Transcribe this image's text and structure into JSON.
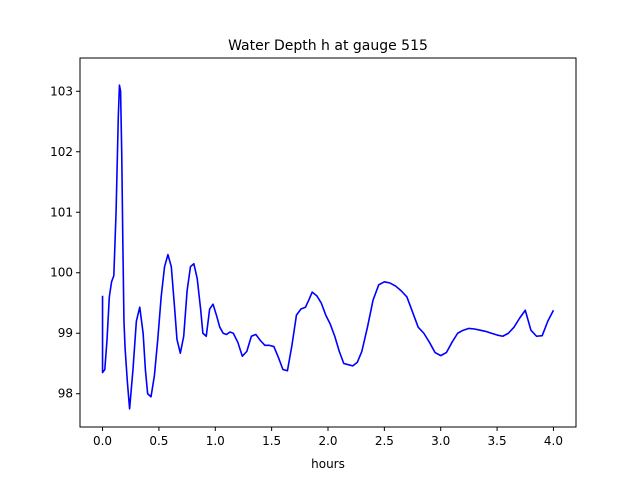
{
  "chart_data": {
    "type": "line",
    "title": "Water Depth h at gauge 515",
    "xlabel": "hours",
    "ylabel": "",
    "xlim": [
      -0.2,
      4.2
    ],
    "ylim": [
      97.45,
      103.55
    ],
    "xticks": [
      0.0,
      0.5,
      1.0,
      1.5,
      2.0,
      2.5,
      3.0,
      3.5,
      4.0
    ],
    "xtick_labels": [
      "0.0",
      "0.5",
      "1.0",
      "1.5",
      "2.0",
      "2.5",
      "3.0",
      "3.5",
      "4.0"
    ],
    "yticks": [
      98,
      99,
      100,
      101,
      102,
      103
    ],
    "ytick_labels": [
      "98",
      "99",
      "100",
      "101",
      "102",
      "103"
    ],
    "grid": false,
    "legend": "none",
    "series": [
      {
        "color": "#0000ff",
        "x": [
          0.0,
          0.0,
          0.02,
          0.04,
          0.06,
          0.08,
          0.1,
          0.12,
          0.14,
          0.15,
          0.16,
          0.17,
          0.18,
          0.19,
          0.2,
          0.22,
          0.24,
          0.27,
          0.3,
          0.33,
          0.36,
          0.38,
          0.4,
          0.43,
          0.46,
          0.49,
          0.52,
          0.55,
          0.58,
          0.61,
          0.64,
          0.66,
          0.69,
          0.72,
          0.75,
          0.78,
          0.81,
          0.84,
          0.87,
          0.89,
          0.92,
          0.95,
          0.98,
          1.01,
          1.04,
          1.07,
          1.1,
          1.13,
          1.16,
          1.2,
          1.24,
          1.28,
          1.32,
          1.36,
          1.4,
          1.44,
          1.48,
          1.52,
          1.56,
          1.6,
          1.64,
          1.68,
          1.72,
          1.76,
          1.8,
          1.83,
          1.86,
          1.9,
          1.94,
          1.98,
          2.02,
          2.06,
          2.1,
          2.14,
          2.18,
          2.22,
          2.26,
          2.3,
          2.35,
          2.4,
          2.45,
          2.5,
          2.55,
          2.6,
          2.65,
          2.7,
          2.75,
          2.8,
          2.85,
          2.9,
          2.95,
          3.0,
          3.05,
          3.1,
          3.15,
          3.2,
          3.25,
          3.3,
          3.35,
          3.4,
          3.45,
          3.5,
          3.55,
          3.6,
          3.65,
          3.7,
          3.75,
          3.8,
          3.85,
          3.9,
          3.95,
          4.0
        ],
        "y": [
          99.62,
          98.35,
          98.4,
          98.9,
          99.6,
          99.85,
          99.95,
          101.0,
          102.6,
          103.1,
          103.0,
          102.0,
          100.5,
          99.2,
          98.75,
          98.2,
          97.75,
          98.4,
          99.2,
          99.43,
          99.0,
          98.4,
          98.0,
          97.95,
          98.3,
          98.9,
          99.6,
          100.1,
          100.3,
          100.1,
          99.4,
          98.9,
          98.67,
          98.95,
          99.7,
          100.1,
          100.15,
          99.9,
          99.4,
          99.0,
          98.95,
          99.4,
          99.48,
          99.3,
          99.1,
          99.0,
          98.98,
          99.02,
          99.0,
          98.85,
          98.62,
          98.7,
          98.95,
          98.98,
          98.88,
          98.8,
          98.8,
          98.78,
          98.6,
          98.4,
          98.38,
          98.8,
          99.3,
          99.4,
          99.43,
          99.55,
          99.68,
          99.62,
          99.5,
          99.3,
          99.15,
          98.95,
          98.7,
          98.5,
          98.48,
          98.46,
          98.52,
          98.7,
          99.1,
          99.55,
          99.8,
          99.85,
          99.83,
          99.78,
          99.7,
          99.6,
          99.35,
          99.1,
          99.0,
          98.85,
          98.68,
          98.63,
          98.68,
          98.85,
          99.0,
          99.05,
          99.08,
          99.07,
          99.05,
          99.03,
          99.0,
          98.97,
          98.95,
          99.0,
          99.1,
          99.25,
          99.38,
          99.05,
          98.95,
          98.96,
          99.2,
          99.38
        ]
      }
    ]
  }
}
